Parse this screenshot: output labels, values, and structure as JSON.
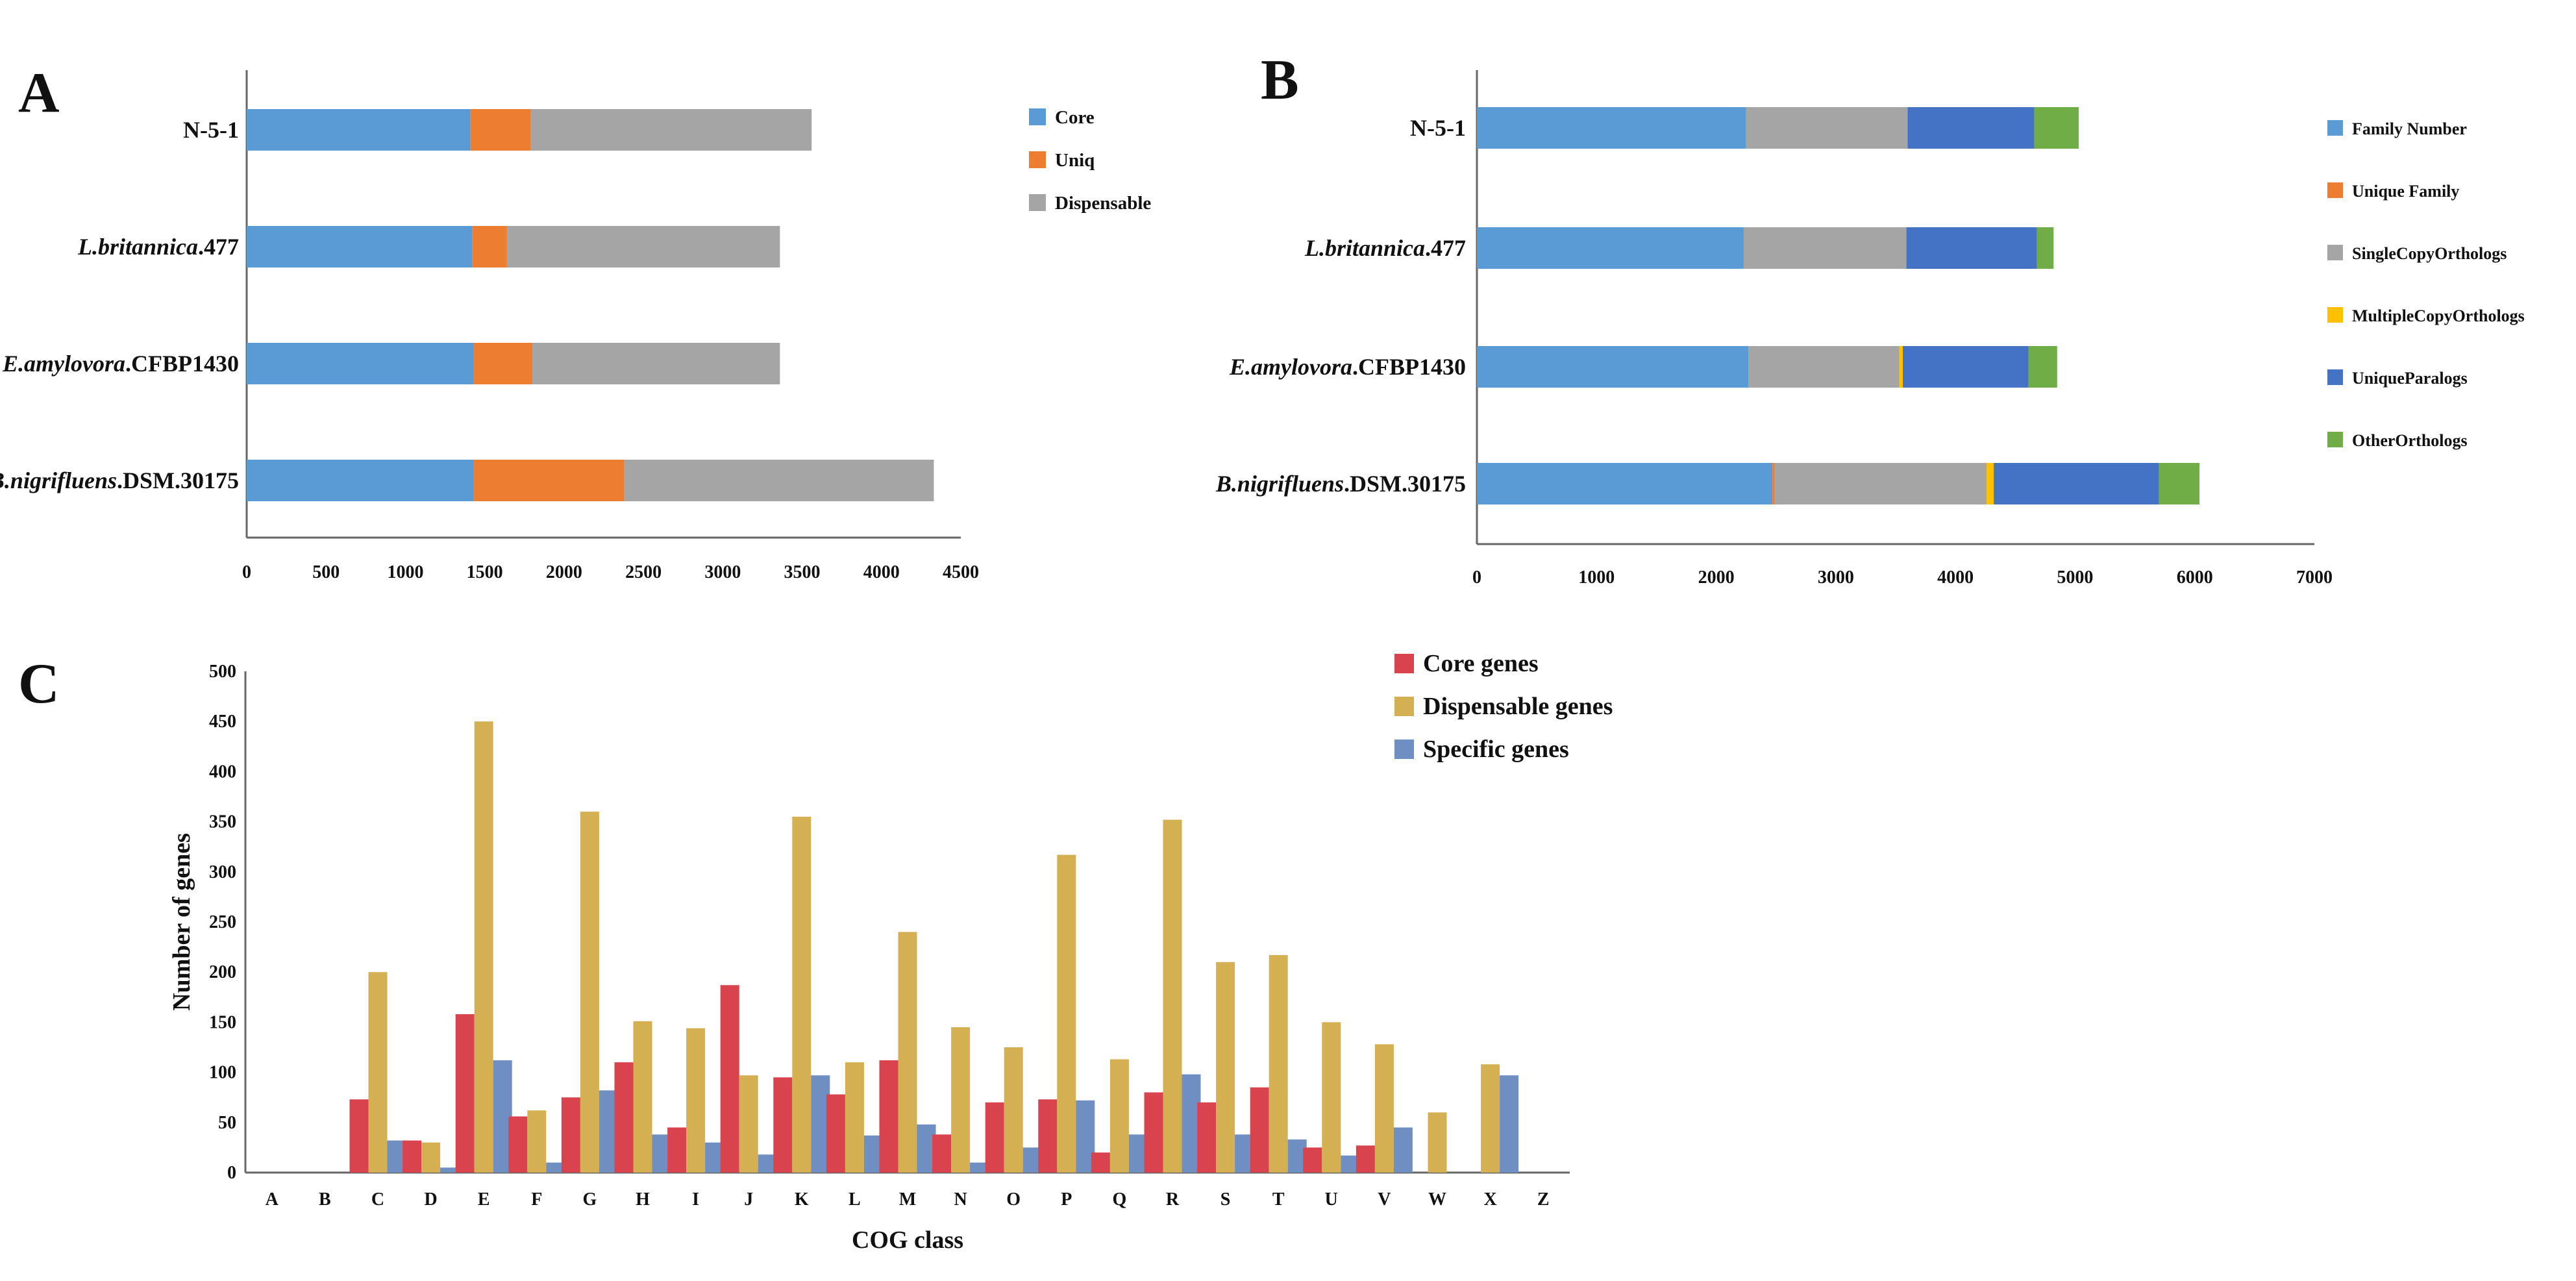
{
  "panels": {
    "a": "A",
    "b": "B",
    "c": "C"
  },
  "chart_data": [
    {
      "type": "bar",
      "orientation": "horizontal",
      "stacked": true,
      "panel": "A",
      "categories": [
        {
          "italic": "",
          "plain": "N-5-1"
        },
        {
          "italic": "L.britannica",
          "plain": ".477"
        },
        {
          "italic": "E.amylovora",
          "plain": ".CFBP1430"
        },
        {
          "italic": "B.nigrifluens",
          "plain": ".DSM.30175"
        }
      ],
      "series": [
        {
          "name": "Core",
          "color": "#5b9bd5",
          "values": [
            1410,
            1420,
            1430,
            1430
          ]
        },
        {
          "name": "Uniq",
          "color": "#ed7d31",
          "values": [
            380,
            220,
            370,
            950
          ]
        },
        {
          "name": "Dispensable",
          "color": "#a5a5a5",
          "values": [
            1770,
            1720,
            1560,
            1950
          ]
        }
      ],
      "xlim": [
        0,
        4500
      ],
      "xticks": [
        0,
        500,
        1000,
        1500,
        2000,
        2500,
        3000,
        3500,
        4000,
        4500
      ],
      "legend_position": "right"
    },
    {
      "type": "bar",
      "orientation": "horizontal",
      "stacked": true,
      "panel": "B",
      "categories": [
        {
          "italic": "",
          "plain": "N-5-1"
        },
        {
          "italic": "L.britannica",
          "plain": ".477"
        },
        {
          "italic": "E.amylovora",
          "plain": ".CFBP1430"
        },
        {
          "italic": "B.nigrifluens",
          "plain": ".DSM.30175"
        }
      ],
      "series": [
        {
          "name": "Family Number",
          "color": "#5b9bd5",
          "values": [
            2250,
            2230,
            2270,
            2470
          ]
        },
        {
          "name": "Unique Family",
          "color": "#ed7d31",
          "values": [
            0,
            0,
            0,
            20
          ]
        },
        {
          "name": "SingleCopyOrthologs",
          "color": "#a5a5a5",
          "values": [
            1350,
            1360,
            1260,
            1770
          ]
        },
        {
          "name": "MultipleCopyOrthologs",
          "color": "#ffc000",
          "values": [
            0,
            0,
            30,
            60
          ]
        },
        {
          "name": "UniqueParalogs",
          "color": "#4472c4",
          "values": [
            1060,
            1090,
            1050,
            1380
          ]
        },
        {
          "name": "OtherOrthologs",
          "color": "#70ad47",
          "values": [
            370,
            140,
            240,
            340
          ]
        }
      ],
      "xlim": [
        0,
        7000
      ],
      "xticks": [
        0,
        1000,
        2000,
        3000,
        4000,
        5000,
        6000,
        7000
      ],
      "legend_position": "right"
    },
    {
      "type": "bar",
      "orientation": "vertical",
      "panel": "C",
      "categories": [
        "A",
        "B",
        "C",
        "D",
        "E",
        "F",
        "G",
        "H",
        "I",
        "J",
        "K",
        "L",
        "M",
        "N",
        "O",
        "P",
        "Q",
        "R",
        "S",
        "T",
        "U",
        "V",
        "W",
        "X",
        "Z"
      ],
      "series": [
        {
          "name": "Core genes",
          "color": "#d9434e",
          "values": [
            0,
            0,
            73,
            32,
            158,
            56,
            75,
            110,
            45,
            187,
            95,
            78,
            112,
            38,
            70,
            73,
            20,
            80,
            70,
            85,
            25,
            27,
            0,
            0,
            0
          ]
        },
        {
          "name": "Dispensable genes",
          "color": "#d4b052",
          "values": [
            0,
            0,
            200,
            30,
            450,
            62,
            360,
            151,
            144,
            97,
            355,
            110,
            240,
            145,
            125,
            317,
            113,
            352,
            210,
            217,
            150,
            128,
            60,
            108,
            0
          ]
        },
        {
          "name": "Specific genes",
          "color": "#6f8fc2",
          "values": [
            0,
            0,
            32,
            5,
            112,
            10,
            82,
            38,
            30,
            18,
            97,
            37,
            48,
            10,
            25,
            72,
            38,
            98,
            38,
            33,
            17,
            45,
            0,
            97,
            0
          ]
        }
      ],
      "xlabel": "COG class",
      "ylabel": "Number of genes",
      "ylim": [
        0,
        500
      ],
      "yticks": [
        0,
        50,
        100,
        150,
        200,
        250,
        300,
        350,
        400,
        450,
        500
      ],
      "legend_position": "top-right"
    }
  ]
}
